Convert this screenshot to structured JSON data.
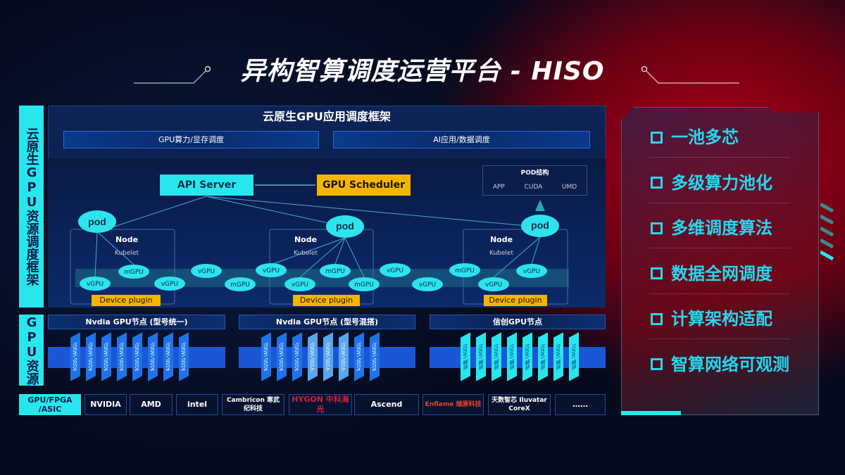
{
  "title": "异构智算调度运营平台 - HISO",
  "left_labels": {
    "framework": "云原生GPU资源调度框架",
    "resources": "GPU资源",
    "chips": "GPU/FPGA /ASIC"
  },
  "framework": {
    "title": "云原生GPU应用调度框架",
    "subbars": [
      "GPU算力/显存调度",
      "AI应用/数据调度"
    ],
    "api_server": "API Server",
    "gpu_scheduler": "GPU Scheduler",
    "pod_structure": {
      "title": "POD结构",
      "items": [
        "APP",
        "CUDA",
        "UMD"
      ]
    },
    "pod_label": "pod",
    "node_label": "Node",
    "kubelet_label": "Kubelet",
    "device_plugin": "Device plugin",
    "gpus": [
      "vGPU",
      "mGPU",
      "vGPU",
      "vGPU",
      "mGPU",
      "vGPU",
      "vGPU",
      "mGPU",
      "mGPU",
      "vGPU",
      "vGPU",
      "mGPU",
      "vGPU",
      "vGPU"
    ]
  },
  "resources": {
    "groups": [
      {
        "title": "Nvdia GPU节点 (型号统一)",
        "cards": [
          "A100 (40G)",
          "A100 (40G)",
          "A100 (40G)",
          "A100 (40G)",
          "A100 (40G)",
          "A100 (40G)",
          "A100 (40G)",
          "A100 (40G)"
        ]
      },
      {
        "title": "Nvdia GPU节点 (型号混搭)",
        "cards": [
          "A100 (40G)",
          "A100 (40G)",
          "A100 (40G)",
          "V100 (40G)",
          "V100 (40G)",
          "V100 (40G)",
          "A100 (40G)",
          "A100 (40G)"
        ]
      },
      {
        "title": "信创GPU节点",
        "cards": [
          "昇腾 (40G)",
          "昇腾 (40G)",
          "昇腾 (40G)",
          "昇腾 (40G)",
          "昇腾 (40G)",
          "昇腾 (40G)",
          "昇腾 (40G)",
          "昇腾 (40G)"
        ]
      }
    ]
  },
  "vendors": [
    "NVIDIA",
    "AMD",
    "intel",
    "Cambricon 寒武纪科技",
    "HYGON 中科海光",
    "Ascend",
    "Enflame 燧原科技",
    "天数智芯 Iluvatar CoreX",
    "……"
  ],
  "features": [
    "一池多芯",
    "多级算力池化",
    "多维调度算法",
    "数据全网调度",
    "计算架构适配",
    "智算网络可观测"
  ],
  "colors": {
    "cyan": "#27e6ee",
    "orange": "#f5b400",
    "navy": "#0d2456",
    "red": "#b0001a"
  }
}
